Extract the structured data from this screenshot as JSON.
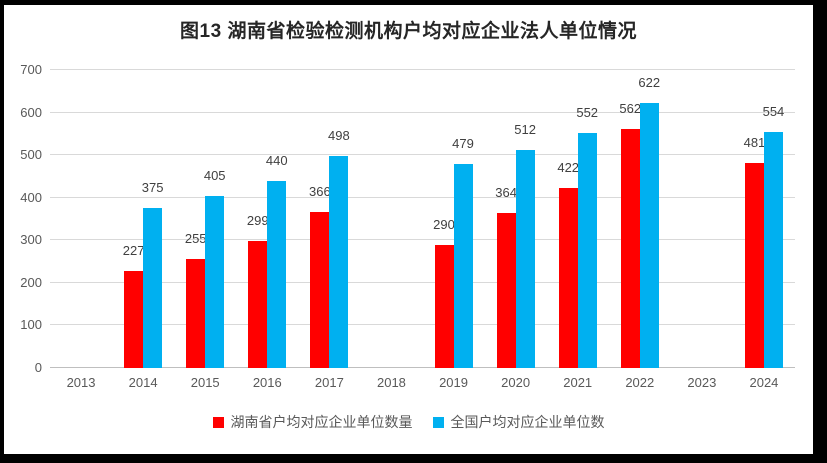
{
  "chart_data": {
    "type": "bar",
    "title": "图13  湖南省检验检测机构户均对应企业法人单位情况",
    "categories": [
      "2013",
      "2014",
      "2015",
      "2016",
      "2017",
      "2018",
      "2019",
      "2020",
      "2021",
      "2022",
      "2023",
      "2024"
    ],
    "series": [
      {
        "name": "湖南省户均对应企业单位数量",
        "color": "#FF0000",
        "values": [
          null,
          227,
          255,
          299,
          366,
          null,
          290,
          364,
          422,
          562,
          null,
          481
        ]
      },
      {
        "name": "全国户均对应企业单位数",
        "color": "#00B0F0",
        "values": [
          null,
          375,
          405,
          440,
          498,
          null,
          479,
          512,
          552,
          622,
          null,
          554
        ]
      }
    ],
    "xlabel": "",
    "ylabel": "",
    "ylim": [
      0,
      700
    ],
    "yticks": [
      0,
      100,
      200,
      300,
      400,
      500,
      600,
      700
    ],
    "grid": true,
    "data_labels": true,
    "legend_position": "bottom"
  },
  "style": {
    "gridline_color": "#d9d9d9",
    "axis_line_color": "#bfbfbf",
    "label_color": "#404040",
    "tick_color": "#595959",
    "title_color": "#262626"
  }
}
